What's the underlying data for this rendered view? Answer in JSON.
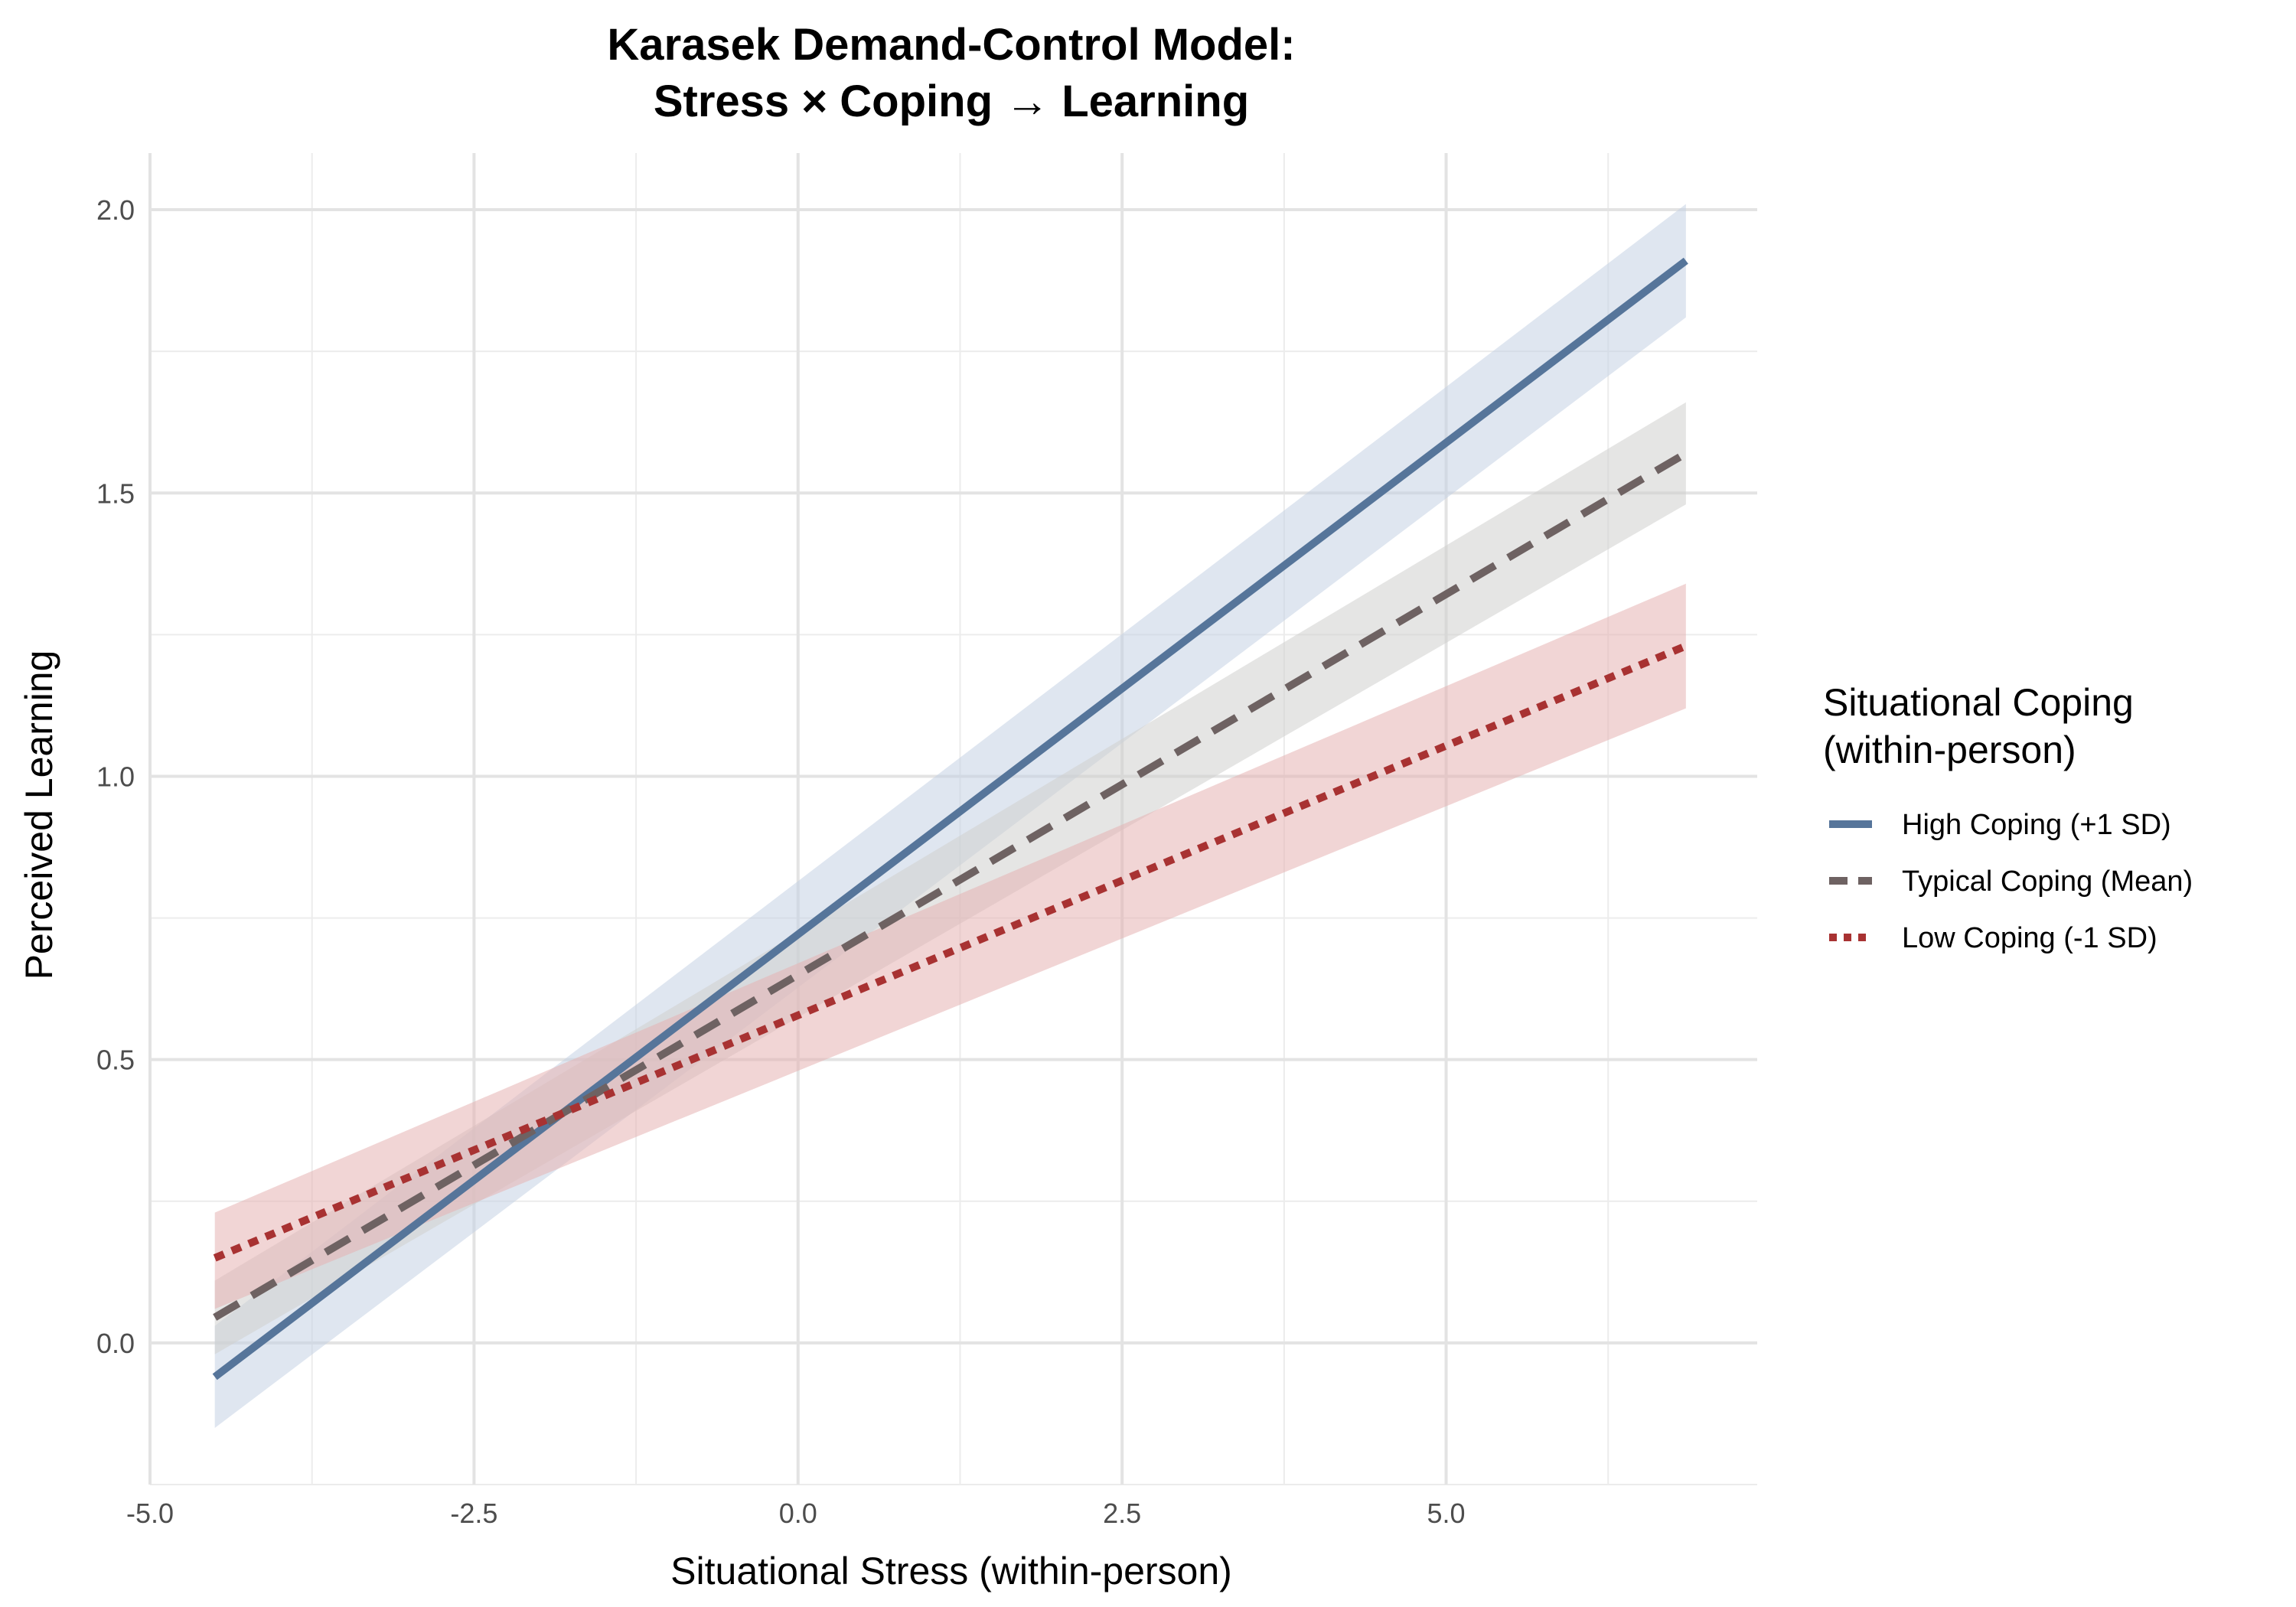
{
  "chart_data": {
    "type": "line",
    "title": [
      "Karasek Demand-Control Model:",
      "Stress × Coping → Learning"
    ],
    "xlabel": "Situational Stress (within-person)",
    "ylabel": "Perceived Learning",
    "xlim": [
      -5.0,
      7.4
    ],
    "ylim": [
      -0.25,
      2.1
    ],
    "x_ticks": [
      -5.0,
      -2.5,
      0.0,
      2.5,
      5.0
    ],
    "x_tick_labels": [
      "-5.0",
      "-2.5",
      "0.0",
      "2.5",
      "5.0"
    ],
    "y_ticks": [
      0.0,
      0.5,
      1.0,
      1.5,
      2.0
    ],
    "y_tick_labels": [
      "0.0",
      "0.5",
      "1.0",
      "1.5",
      "2.0"
    ],
    "grid": true,
    "legend": {
      "title": [
        "Situational Coping",
        "(within-person)"
      ],
      "position": "right"
    },
    "series": [
      {
        "name": "High Coping (+1 SD)",
        "color": "#56759a",
        "fill": "#c5d1e3",
        "style": "solid",
        "x": [
          -4.5,
          6.85
        ],
        "y": [
          -0.06,
          1.91
        ],
        "ci_lower": [
          -0.15,
          1.81
        ],
        "ci_upper": [
          0.03,
          2.01
        ]
      },
      {
        "name": "Typical Coping (Mean)",
        "color": "#6e6262",
        "fill": "#cfcfcd",
        "style": "dashed",
        "x": [
          -4.5,
          6.85
        ],
        "y": [
          0.045,
          1.57
        ],
        "ci_lower": [
          -0.02,
          1.48
        ],
        "ci_upper": [
          0.11,
          1.66
        ]
      },
      {
        "name": "Low Coping (-1 SD)",
        "color": "#a83232",
        "fill": "#e5b3b3",
        "style": "dotted",
        "x": [
          -4.5,
          6.85
        ],
        "y": [
          0.15,
          1.23
        ],
        "ci_lower": [
          0.06,
          1.12
        ],
        "ci_upper": [
          0.23,
          1.34
        ]
      }
    ]
  }
}
